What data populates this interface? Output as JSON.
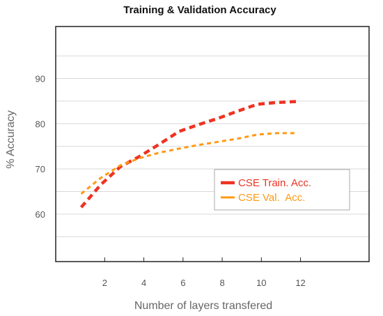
{
  "chart_data": {
    "type": "line",
    "title": "Training & Validation Accuracy",
    "xlabel": "Number of layers transfered",
    "ylabel": "% Accuracy",
    "xlim": [
      -0.5,
      15.5
    ],
    "ylim": [
      49.5,
      101.5
    ],
    "xticks": [
      2,
      4,
      6,
      8,
      10,
      12
    ],
    "yticks": [
      60,
      70,
      80,
      90
    ],
    "grid_y": [
      55,
      60,
      65,
      70,
      75,
      80,
      85,
      90,
      95
    ],
    "grid": true,
    "legend_position": "center-right",
    "series": [
      {
        "name": "CSE Train. Acc.",
        "color": "#ee3322",
        "style": "dashed-thick",
        "x": [
          0.8,
          1.8,
          2.8,
          3.8,
          4.8,
          5.8,
          6.8,
          7.8,
          8.8,
          9.8,
          10.8,
          11.8
        ],
        "y": [
          61.5,
          66.5,
          70.5,
          72.8,
          75.5,
          78.3,
          79.8,
          81.2,
          82.8,
          84.3,
          84.7,
          84.9
        ]
      },
      {
        "name": "CSE Val.  Acc.",
        "color": "#ff9911",
        "style": "dashed-thin",
        "x": [
          0.8,
          1.8,
          2.8,
          3.8,
          4.8,
          5.8,
          6.8,
          7.8,
          8.8,
          9.8,
          10.8,
          11.8
        ],
        "y": [
          64.5,
          68,
          70.8,
          72.4,
          73.6,
          74.5,
          75.3,
          76.0,
          76.7,
          77.6,
          77.9,
          77.9
        ]
      }
    ]
  }
}
